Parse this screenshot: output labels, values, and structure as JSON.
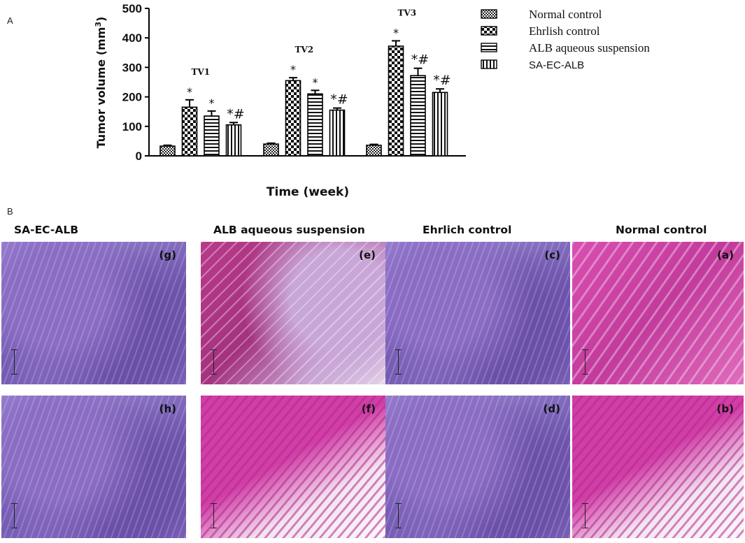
{
  "figure": {
    "panel_a_label": "A",
    "panel_b_label": "B"
  },
  "chart_data": {
    "type": "bar",
    "title": "",
    "xlabel": "Time (week)",
    "ylabel": "Tumor  volume (mm",
    "ylabel_superscript": "3",
    "ylabel_close": ")",
    "ylim": [
      0,
      500
    ],
    "yticks": [
      0,
      100,
      200,
      300,
      400,
      500
    ],
    "grid": false,
    "legend_position": "right",
    "categories": [
      "TV1",
      "TV2",
      "TV3"
    ],
    "series": [
      {
        "name": "Normal control",
        "pattern": "checker-fine",
        "values": [
          33,
          40,
          36
        ],
        "errors": [
          3,
          3,
          3
        ],
        "annotations": [
          "",
          "",
          ""
        ]
      },
      {
        "name": "Ehrlish control",
        "pattern": "checker-coarse",
        "values": [
          165,
          255,
          372
        ],
        "errors": [
          25,
          10,
          18
        ],
        "annotations": [
          "*",
          "*",
          "*"
        ]
      },
      {
        "name": "ALB aqueous suspension",
        "pattern": "horizontal",
        "values": [
          135,
          210,
          272
        ],
        "errors": [
          17,
          12,
          25
        ],
        "annotations": [
          "*",
          "*",
          "*#"
        ]
      },
      {
        "name": "SA-EC-ALB",
        "pattern": "vertical",
        "values": [
          105,
          155,
          215
        ],
        "errors": [
          8,
          7,
          12
        ],
        "annotations": [
          "*#",
          "*#",
          "*#"
        ]
      }
    ]
  },
  "histology": {
    "column_titles": [
      "SA-EC-ALB",
      "ALB aqueous suspension",
      "Ehrlich control",
      "Normal control"
    ],
    "top_row_tags": [
      "(g)",
      "(e)",
      "(c)",
      "(a)"
    ],
    "bottom_row_tags": [
      "(h)",
      "(f)",
      "(d)",
      "(b)"
    ]
  }
}
